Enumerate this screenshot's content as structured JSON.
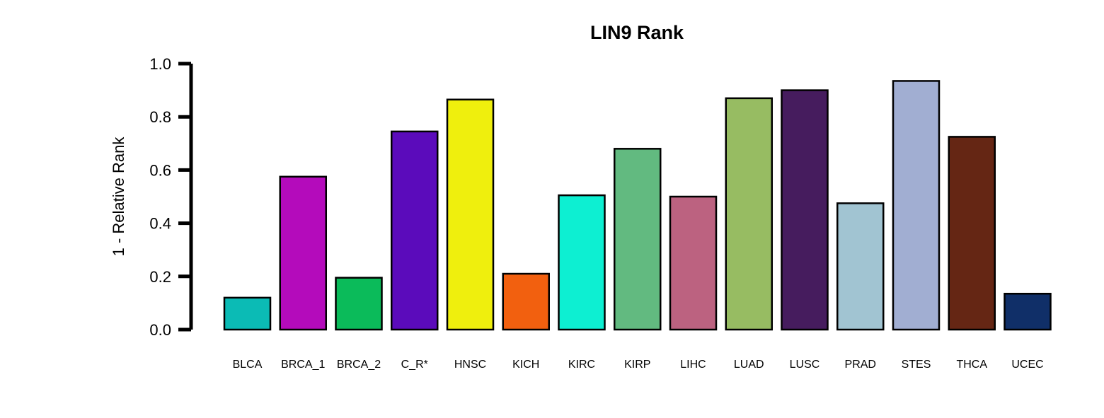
{
  "chart_data": {
    "type": "bar",
    "title": "LIN9 Rank",
    "ylabel": "1 - Relative Rank",
    "xlabel": "",
    "ylim": [
      0,
      1
    ],
    "yticks": [
      0,
      0.2,
      0.4,
      0.6,
      0.8,
      1
    ],
    "ytick_labels": [
      "0.0",
      "0.2",
      "0.4",
      "0.6",
      "0.8",
      "1.0"
    ],
    "grid": false,
    "categories": [
      "BLCA",
      "BRCA_1",
      "BRCA_2",
      "C_R*",
      "HNSC",
      "KICH",
      "KIRC",
      "KIRP",
      "LIHC",
      "LUAD",
      "LUSC",
      "PRAD",
      "STES",
      "THCA",
      "UCEC"
    ],
    "values": [
      0.12,
      0.575,
      0.195,
      0.745,
      0.865,
      0.21,
      0.505,
      0.68,
      0.5,
      0.87,
      0.9,
      0.475,
      0.935,
      0.725,
      0.135
    ],
    "colors": [
      "#0BBBB5",
      "#B40BBB",
      "#0BBB5A",
      "#5B0BBB",
      "#EFEF0D",
      "#F2600F",
      "#0DEFD2",
      "#62BA80",
      "#BC6280",
      "#97BC62",
      "#461C5E",
      "#A1C4D2",
      "#A1AED2",
      "#652614",
      "#102F68"
    ]
  }
}
